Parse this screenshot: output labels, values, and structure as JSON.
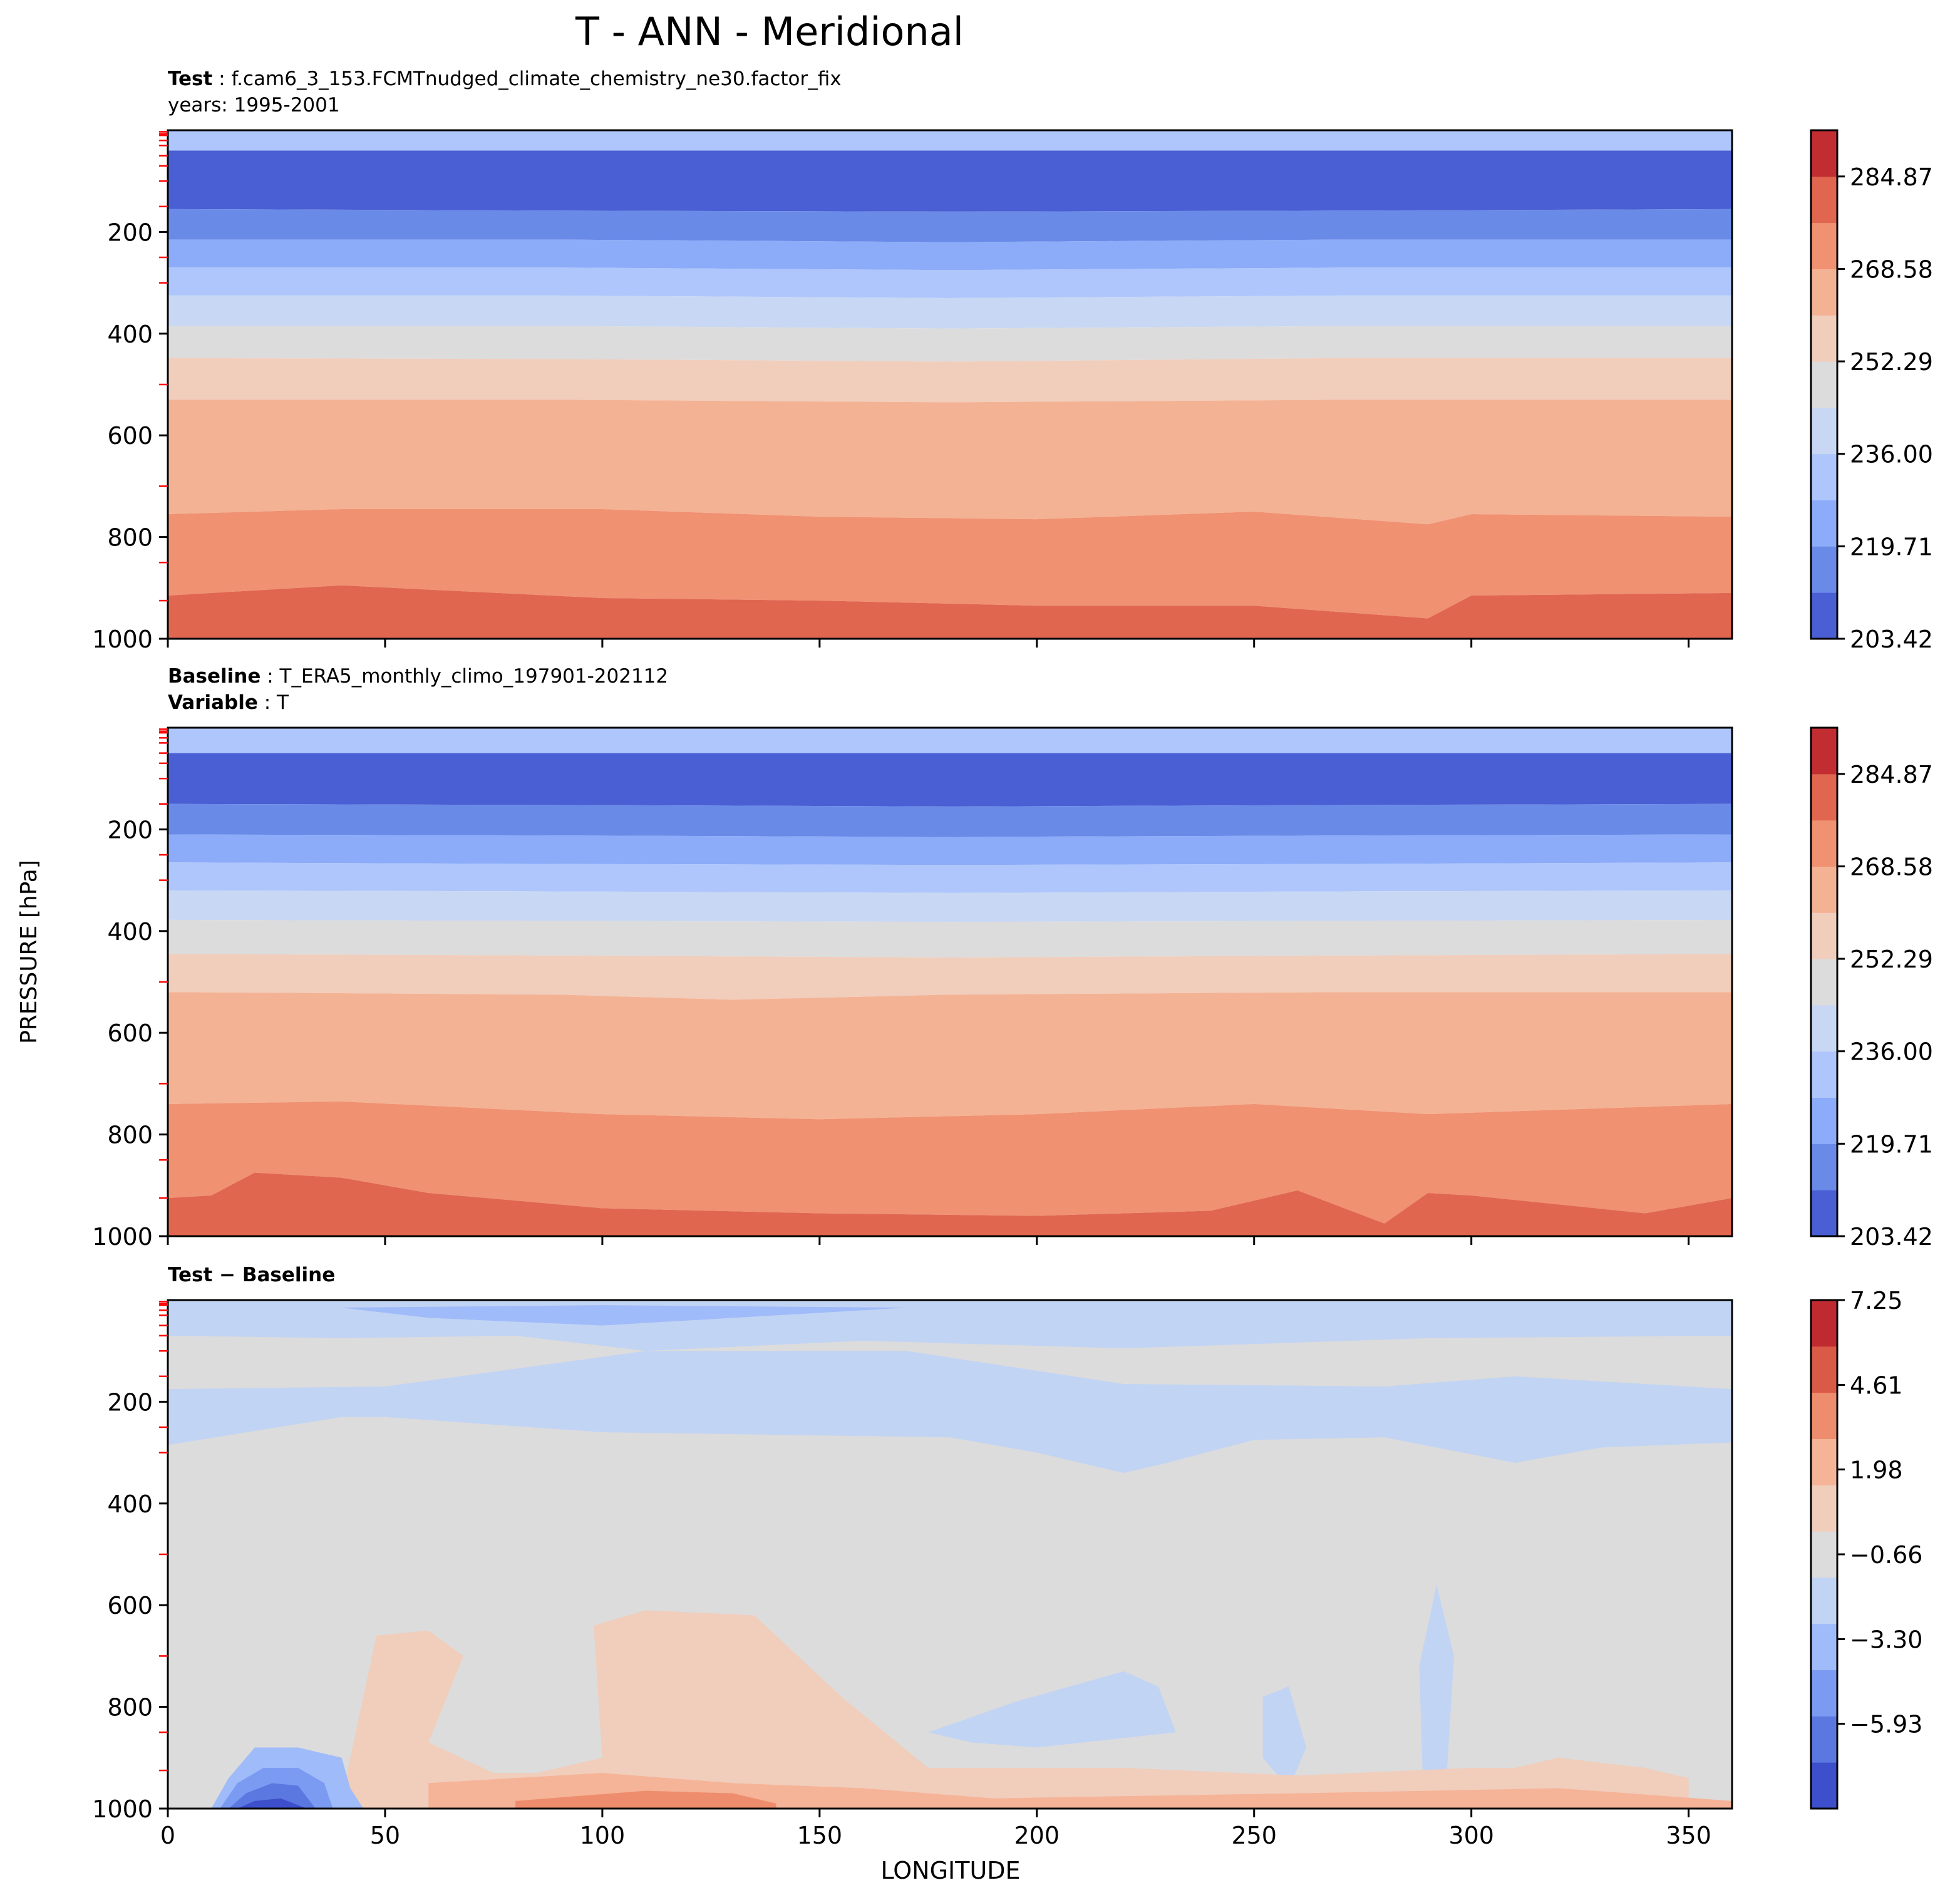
{
  "figure": {
    "title": "T - ANN - Meridional",
    "ylabel": "PRESSURE [hPa]",
    "xlabel": "LONGITUDE"
  },
  "panels": [
    {
      "id": "test",
      "header_lines": [
        {
          "bold": "Test",
          "text": " : f.cam6_3_153.FCMTnudged_climate_chemistry_ne30.factor_fix"
        },
        {
          "bold": "",
          "text": "years: 1995-2001"
        }
      ]
    },
    {
      "id": "baseline",
      "header_lines": [
        {
          "bold": "Baseline",
          "text": " : T_ERA5_monthly_climo_197901-202112"
        },
        {
          "bold": "Variable",
          "text": " : T"
        }
      ]
    },
    {
      "id": "diff",
      "header_lines": [
        {
          "bold": "Test − Baseline",
          "text": ""
        }
      ]
    }
  ],
  "colors": {
    "temp_levels": [
      "#4a5fd3",
      "#6a8ae8",
      "#8cabf8",
      "#aec6fb",
      "#c8d7f3",
      "#dcdcdc",
      "#f1cdbb",
      "#f4b294",
      "#f09172",
      "#e06650",
      "#c22d32"
    ],
    "diff_levels": [
      "#3d4fcb",
      "#5b78e0",
      "#7b9bf2",
      "#9fbbf9",
      "#c2d4f3",
      "#dcdcdc",
      "#f1cdbb",
      "#f5b397",
      "#ee8d6d",
      "#da5a48",
      "#bf2a30"
    ]
  },
  "chart_data": [
    {
      "type": "contour",
      "panel": "test",
      "x_range": [
        0,
        360
      ],
      "y_range": [
        1000,
        0
      ],
      "x_ticks": [
        "0",
        "50",
        "100",
        "150",
        "200",
        "250",
        "300",
        "350"
      ],
      "y_ticks": [
        "200",
        "400",
        "600",
        "800",
        "1000"
      ],
      "colorbar_ticks": [
        "203.42",
        "219.71",
        "236.00",
        "252.29",
        "268.58",
        "284.87"
      ],
      "colorbar_range": [
        203.42,
        293.01
      ],
      "level_boundaries_hPa": [
        {
          "x": [
            0,
            90,
            180,
            270,
            360
          ],
          "p": [
            40,
            40,
            40,
            40,
            40
          ]
        },
        {
          "x": [
            0,
            90,
            180,
            270,
            360
          ],
          "p": [
            155,
            158,
            160,
            158,
            155
          ]
        },
        {
          "x": [
            0,
            90,
            180,
            270,
            360
          ],
          "p": [
            215,
            215,
            220,
            215,
            215
          ]
        },
        {
          "x": [
            0,
            90,
            180,
            270,
            360
          ],
          "p": [
            270,
            270,
            275,
            270,
            270
          ]
        },
        {
          "x": [
            0,
            90,
            180,
            270,
            360
          ],
          "p": [
            325,
            325,
            330,
            325,
            325
          ]
        },
        {
          "x": [
            0,
            90,
            180,
            270,
            360
          ],
          "p": [
            385,
            385,
            390,
            385,
            385
          ]
        },
        {
          "x": [
            0,
            90,
            180,
            270,
            360
          ],
          "p": [
            448,
            450,
            455,
            448,
            448
          ]
        },
        {
          "x": [
            0,
            90,
            180,
            270,
            360
          ],
          "p": [
            530,
            530,
            535,
            530,
            530
          ]
        },
        {
          "x": [
            0,
            40,
            100,
            150,
            200,
            250,
            290,
            300,
            360
          ],
          "p": [
            755,
            745,
            745,
            760,
            765,
            750,
            775,
            755,
            760
          ]
        },
        {
          "x": [
            0,
            20,
            40,
            100,
            150,
            200,
            250,
            290,
            300,
            360
          ],
          "p": [
            915,
            905,
            895,
            920,
            925,
            935,
            935,
            960,
            915,
            910
          ]
        }
      ]
    },
    {
      "type": "contour",
      "panel": "baseline",
      "x_range": [
        0,
        360
      ],
      "y_range": [
        1000,
        0
      ],
      "x_ticks": [
        "0",
        "50",
        "100",
        "150",
        "200",
        "250",
        "300",
        "350"
      ],
      "y_ticks": [
        "200",
        "400",
        "600",
        "800",
        "1000"
      ],
      "colorbar_ticks": [
        "203.42",
        "219.71",
        "236.00",
        "252.29",
        "268.58",
        "284.87"
      ],
      "colorbar_range": [
        203.42,
        293.01
      ],
      "level_boundaries_hPa": [
        {
          "x": [
            0,
            90,
            180,
            270,
            360
          ],
          "p": [
            50,
            50,
            50,
            50,
            50
          ]
        },
        {
          "x": [
            0,
            90,
            180,
            270,
            360
          ],
          "p": [
            150,
            152,
            155,
            152,
            150
          ]
        },
        {
          "x": [
            0,
            90,
            180,
            270,
            360
          ],
          "p": [
            210,
            212,
            215,
            212,
            210
          ]
        },
        {
          "x": [
            0,
            90,
            180,
            270,
            360
          ],
          "p": [
            265,
            268,
            270,
            268,
            265
          ]
        },
        {
          "x": [
            0,
            90,
            180,
            270,
            360
          ],
          "p": [
            320,
            322,
            325,
            322,
            320
          ]
        },
        {
          "x": [
            0,
            90,
            180,
            270,
            360
          ],
          "p": [
            378,
            380,
            382,
            380,
            378
          ]
        },
        {
          "x": [
            0,
            90,
            180,
            270,
            360
          ],
          "p": [
            445,
            448,
            452,
            448,
            445
          ]
        },
        {
          "x": [
            0,
            90,
            130,
            180,
            270,
            360
          ],
          "p": [
            520,
            525,
            535,
            525,
            520,
            520
          ]
        },
        {
          "x": [
            0,
            40,
            100,
            150,
            200,
            250,
            290,
            360
          ],
          "p": [
            740,
            735,
            760,
            770,
            760,
            740,
            760,
            740
          ]
        },
        {
          "x": [
            0,
            10,
            20,
            40,
            60,
            100,
            150,
            200,
            240,
            260,
            280,
            290,
            300,
            340,
            360
          ],
          "p": [
            925,
            920,
            875,
            885,
            915,
            945,
            955,
            960,
            950,
            910,
            975,
            915,
            920,
            955,
            925
          ]
        }
      ]
    },
    {
      "type": "contour",
      "panel": "diff",
      "x_range": [
        0,
        360
      ],
      "y_range": [
        1000,
        0
      ],
      "x_ticks": [
        "0",
        "50",
        "100",
        "150",
        "200",
        "250",
        "300",
        "350"
      ],
      "y_ticks": [
        "200",
        "400",
        "600",
        "800",
        "1000"
      ],
      "colorbar_ticks": [
        "−5.93",
        "−3.30",
        "−0.66",
        "1.98",
        "4.61",
        "7.25"
      ],
      "colorbar_range": [
        -8.57,
        7.25
      ],
      "background_level": "between -1.98 and 0.66",
      "features": [
        {
          "level": "-3.30 to -1.98",
          "description_pressure": "stratospheric cool band 0-70 hPa and 170-350 hPa layer"
        },
        {
          "level": "below -5.93",
          "x_range": [
            15,
            30
          ],
          "p_range": [
            960,
            1000
          ]
        },
        {
          "level": "0.66 to 1.98",
          "x_range": [
            40,
            360
          ],
          "p_range": [
            620,
            1000
          ]
        },
        {
          "level": "1.98 to 3.30",
          "x_range": [
            60,
            140
          ],
          "p_range": [
            940,
            1000
          ]
        }
      ]
    }
  ]
}
